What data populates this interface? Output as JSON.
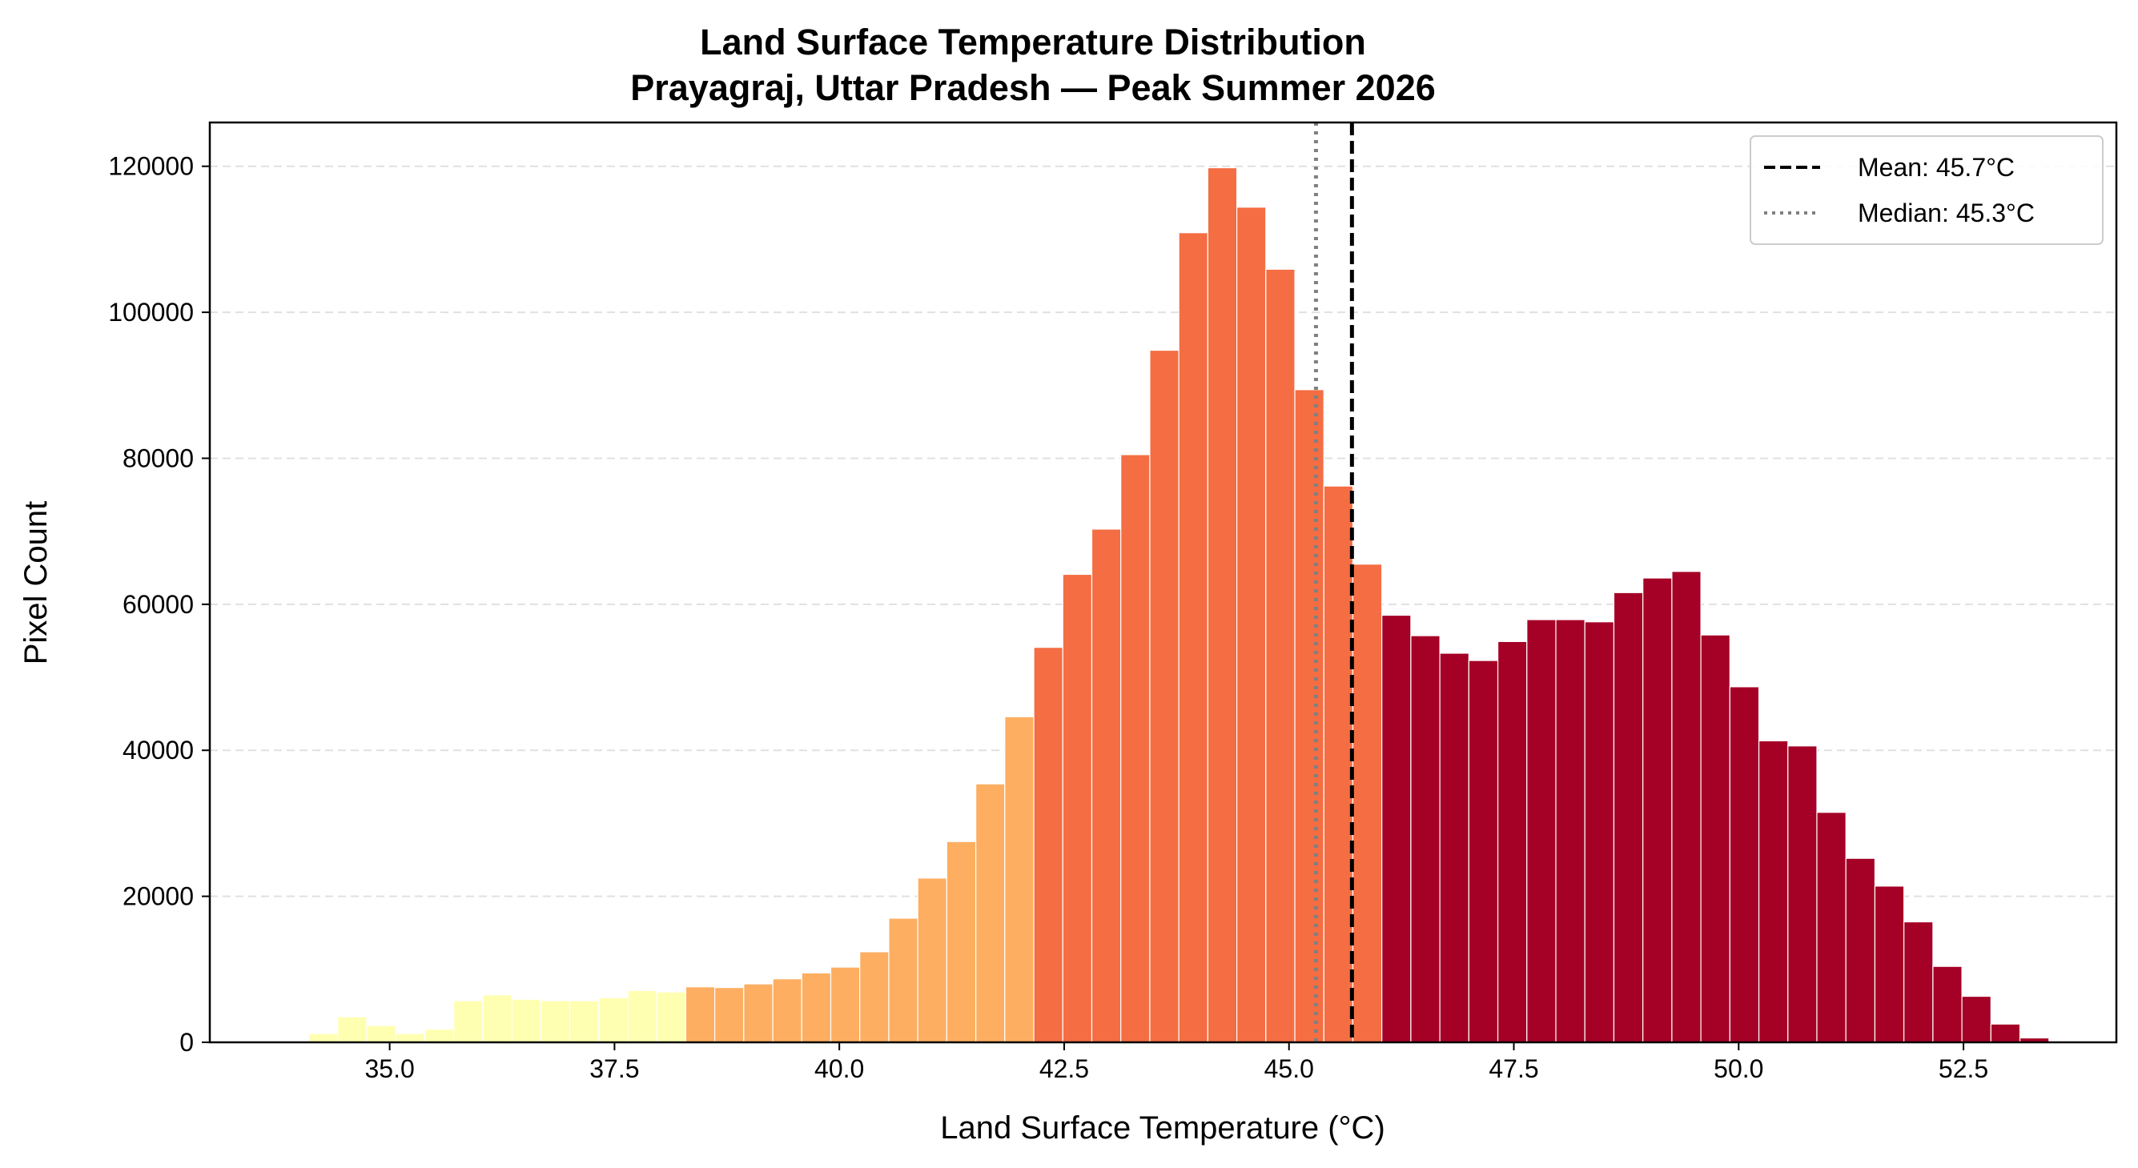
{
  "chart_data": {
    "type": "bar",
    "title": "Land Surface Temperature Distribution",
    "subtitle": "Prayagraj, Uttar Pradesh — Peak Summer 2026",
    "xlabel": "Land Surface Temperature (°C)",
    "ylabel": "Pixel Count",
    "xlim": [
      33.0,
      54.2
    ],
    "ylim": [
      0,
      126000
    ],
    "x_ticks": [
      35.0,
      37.5,
      40.0,
      42.5,
      45.0,
      47.5,
      50.0,
      52.5
    ],
    "x_tick_labels": [
      "35.0",
      "37.5",
      "40.0",
      "42.5",
      "45.0",
      "47.5",
      "50.0",
      "52.5"
    ],
    "y_ticks": [
      0,
      20000,
      40000,
      60000,
      80000,
      100000,
      120000
    ],
    "y_tick_labels": [
      "0",
      "20000",
      "40000",
      "60000",
      "80000",
      "100000",
      "120000"
    ],
    "grid": "horizontal dashed",
    "bin_start": 34.1,
    "bin_width": 0.3225,
    "counts": [
      1200,
      3500,
      2300,
      1200,
      1800,
      5700,
      6500,
      5900,
      5700,
      5700,
      6100,
      7100,
      6900,
      7600,
      7500,
      8000,
      8700,
      9500,
      10300,
      12400,
      17000,
      22500,
      27500,
      35400,
      44600,
      54100,
      64100,
      70300,
      80500,
      94800,
      110900,
      119800,
      114400,
      105900,
      89400,
      76200,
      65500,
      58500,
      55700,
      53300,
      52300,
      54900,
      57900,
      57900,
      57600,
      61600,
      63600,
      64500,
      55800,
      48700,
      41300,
      40600,
      31500,
      25200,
      21400,
      16500,
      10400,
      6300,
      2500,
      600
    ],
    "color_classes": [
      {
        "max_temp": 38.3,
        "color": "#ffffb2"
      },
      {
        "max_temp": 42.2,
        "color": "#fdae61"
      },
      {
        "max_temp": 46.1,
        "color": "#f46d43"
      },
      {
        "max_temp": 99.0,
        "color": "#a50026"
      }
    ],
    "mean": 45.7,
    "median": 45.3,
    "legend": {
      "position": "top-right",
      "entries": [
        {
          "label": "Mean: 45.7°C",
          "style": "dashed",
          "color": "#000000"
        },
        {
          "label": "Median: 45.3°C",
          "style": "dotted",
          "color": "#808080"
        }
      ]
    }
  }
}
